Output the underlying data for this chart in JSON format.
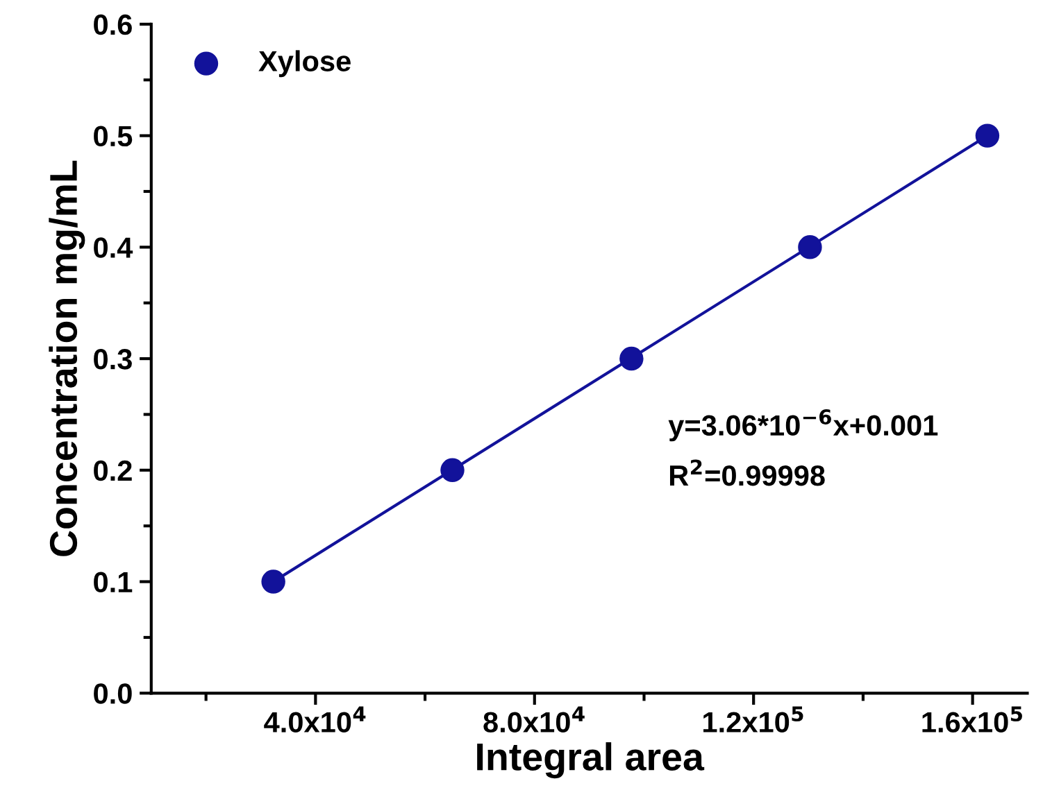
{
  "chart_data": {
    "type": "scatter",
    "xlabel": "Integral area",
    "ylabel": "Concentration mg/mL",
    "series": [
      {
        "name": "Xylose",
        "marker": "circle",
        "color": "#12129a",
        "x": [
          32300,
          65000,
          97700,
          130300,
          162700
        ],
        "values": [
          0.1,
          0.2,
          0.3,
          0.4,
          0.5
        ]
      },
      {
        "type": "line",
        "color": "#12129a",
        "x": [
          32300,
          162700
        ],
        "values": [
          0.1,
          0.5
        ]
      }
    ],
    "xlim": [
      10000,
      170000
    ],
    "xticks": [
      {
        "value": 40000,
        "label": "4.0x10$^{4}$"
      },
      {
        "value": 80000,
        "label": "8.0x10$^{4}$"
      },
      {
        "value": 120000,
        "label": "1.2x10$^{5}$"
      },
      {
        "value": 160000,
        "label": "1.6x10$^{5}$"
      }
    ],
    "ylim": [
      0,
      0.6
    ],
    "yticks": [
      {
        "value": 0,
        "label": "0.0"
      },
      0.1,
      0.2,
      0.3,
      0.4,
      0.5,
      0.6
    ],
    "annotations": [
      "y=3.06*10$^{−6}$x+0.001",
      "R$^{2}$=0.99998"
    ],
    "legend": "top left",
    "grid": false
  }
}
